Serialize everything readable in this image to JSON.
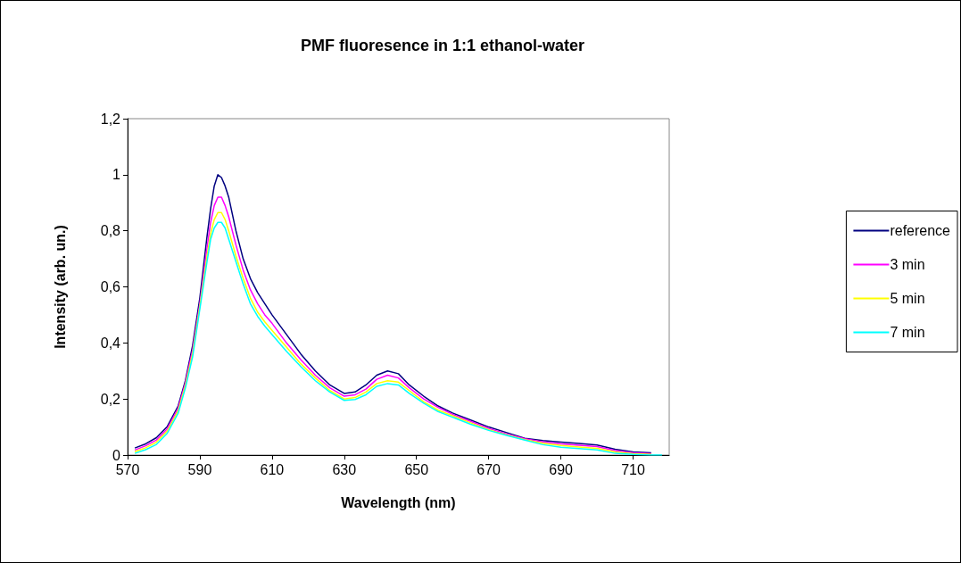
{
  "chart_data": {
    "type": "line",
    "title": "PMF fluoresence in 1:1 ethanol-water",
    "xlabel": "Wavelength (nm)",
    "ylabel": "Intensity (arb. un.)",
    "x": [
      572,
      575,
      578,
      581,
      584,
      586,
      588,
      590,
      592,
      593,
      594,
      595,
      596,
      597,
      598,
      600,
      602,
      604,
      606,
      608,
      610,
      614,
      618,
      622,
      626,
      630,
      633,
      636,
      639,
      642,
      645,
      648,
      652,
      656,
      660,
      665,
      670,
      675,
      680,
      685,
      690,
      695,
      700,
      705,
      710,
      715,
      718
    ],
    "series": [
      {
        "name": "reference",
        "color": "#000080",
        "values": [
          0.025,
          0.04,
          0.062,
          0.102,
          0.175,
          0.265,
          0.39,
          0.56,
          0.78,
          0.88,
          0.96,
          1.0,
          0.99,
          0.96,
          0.92,
          0.8,
          0.7,
          0.63,
          0.58,
          0.54,
          0.5,
          0.43,
          0.36,
          0.3,
          0.25,
          0.22,
          0.225,
          0.25,
          0.285,
          0.3,
          0.29,
          0.25,
          0.21,
          0.175,
          0.15,
          0.125,
          0.1,
          0.08,
          0.06,
          0.052,
          0.046,
          0.041,
          0.036,
          0.021,
          0.011,
          0.008,
          null
        ]
      },
      {
        "name": "3 min",
        "color": "#ff00ff",
        "values": [
          0.018,
          0.033,
          0.054,
          0.094,
          0.167,
          0.257,
          0.375,
          0.54,
          0.74,
          0.83,
          0.89,
          0.92,
          0.92,
          0.89,
          0.85,
          0.75,
          0.66,
          0.59,
          0.54,
          0.5,
          0.47,
          0.4,
          0.34,
          0.285,
          0.24,
          0.21,
          0.215,
          0.235,
          0.27,
          0.285,
          0.275,
          0.24,
          0.2,
          0.17,
          0.145,
          0.12,
          0.095,
          0.075,
          0.058,
          0.047,
          0.04,
          0.035,
          0.03,
          0.016,
          0.008,
          0.005,
          null
        ]
      },
      {
        "name": "5 min",
        "color": "#ffff00",
        "values": [
          0.012,
          0.026,
          0.046,
          0.086,
          0.158,
          0.248,
          0.362,
          0.53,
          0.71,
          0.79,
          0.84,
          0.865,
          0.865,
          0.84,
          0.8,
          0.71,
          0.63,
          0.56,
          0.51,
          0.475,
          0.445,
          0.385,
          0.325,
          0.275,
          0.23,
          0.2,
          0.205,
          0.225,
          0.255,
          0.265,
          0.26,
          0.23,
          0.19,
          0.16,
          0.14,
          0.115,
          0.09,
          0.072,
          0.055,
          0.042,
          0.034,
          0.029,
          0.024,
          0.011,
          0.005,
          0.002,
          null
        ]
      },
      {
        "name": "7 min",
        "color": "#00ffff",
        "values": [
          0.006,
          0.019,
          0.038,
          0.078,
          0.149,
          0.239,
          0.35,
          0.52,
          0.69,
          0.77,
          0.81,
          0.83,
          0.83,
          0.81,
          0.77,
          0.69,
          0.61,
          0.54,
          0.495,
          0.46,
          0.43,
          0.37,
          0.315,
          0.265,
          0.225,
          0.195,
          0.198,
          0.215,
          0.245,
          0.255,
          0.25,
          0.22,
          0.185,
          0.155,
          0.135,
          0.11,
          0.088,
          0.07,
          0.053,
          0.037,
          0.028,
          0.023,
          0.018,
          0.006,
          0.002,
          0,
          0
        ]
      }
    ],
    "xlim": [
      570,
      720
    ],
    "xticks": [
      570,
      590,
      610,
      630,
      650,
      670,
      690,
      710
    ],
    "ylim": [
      0,
      1.2
    ],
    "yticks": [
      0,
      {
        "value": 0.2,
        "label": "0,2"
      },
      {
        "value": 0.4,
        "label": "0,4"
      },
      {
        "value": 0.6,
        "label": "0,6"
      },
      {
        "value": 0.8,
        "label": "0,8"
      },
      1,
      {
        "value": 1.2,
        "label": "1,2"
      }
    ],
    "grid": false,
    "legend": "right",
    "marker": "none",
    "line_style": "solid"
  }
}
